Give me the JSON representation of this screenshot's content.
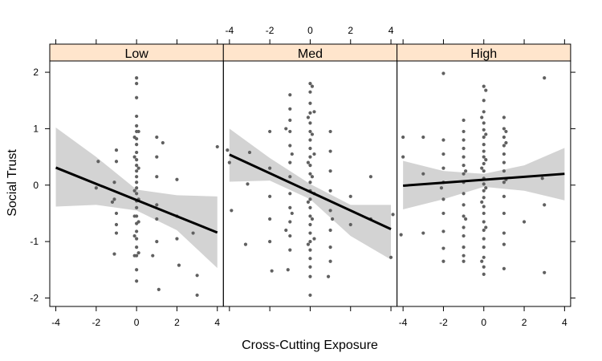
{
  "chart_data": {
    "type": "scatter",
    "xlabel": "Cross-Cutting Exposure",
    "ylabel": "Social Trust",
    "xlim": [
      -4.3,
      4.3
    ],
    "ylim": [
      -2.15,
      2.2
    ],
    "x_ticks": [
      -4,
      -2,
      0,
      2,
      4
    ],
    "y_ticks": [
      -2,
      -1,
      0,
      1,
      2
    ],
    "x_tick_labels": [
      "-4",
      "-2",
      "0",
      "2",
      "4"
    ],
    "y_tick_labels": [
      "-2",
      "-1",
      "0",
      "1",
      "2"
    ],
    "strip_color": "#ffe5cc",
    "point_color": "#606060",
    "line_color": "#000000",
    "band_color": "#d3d3d3",
    "panels": [
      {
        "label": "Low",
        "fit": {
          "x": [
            -4,
            4
          ],
          "y": [
            0.31,
            -0.84
          ]
        },
        "band": {
          "x": [
            -4,
            -2,
            0,
            2,
            4
          ],
          "upper": [
            1.02,
            0.5,
            -0.08,
            -0.18,
            -0.2
          ],
          "lower": [
            -0.38,
            -0.35,
            -0.45,
            -0.8,
            -1.47
          ]
        },
        "points": [
          [
            0,
            1.9
          ],
          [
            0,
            1.8
          ],
          [
            0,
            1.55
          ],
          [
            0,
            1.22
          ],
          [
            0,
            1.05
          ],
          [
            0,
            0.95
          ],
          [
            0,
            0.82
          ],
          [
            0,
            0.72
          ],
          [
            0,
            0.58
          ],
          [
            0,
            0.45
          ],
          [
            0,
            0.35
          ],
          [
            0,
            0.25
          ],
          [
            0,
            0.15
          ],
          [
            0,
            0.05
          ],
          [
            0,
            -0.05
          ],
          [
            0,
            -0.15
          ],
          [
            0,
            -0.28
          ],
          [
            0,
            -0.4
          ],
          [
            0,
            -0.55
          ],
          [
            0,
            -0.68
          ],
          [
            0,
            -0.82
          ],
          [
            0,
            -0.95
          ],
          [
            0,
            -1.1
          ],
          [
            0,
            -1.25
          ],
          [
            0,
            -1.5
          ],
          [
            0,
            -1.7
          ],
          [
            -0.1,
            0.85
          ],
          [
            -0.1,
            0.5
          ],
          [
            -0.1,
            -0.1
          ],
          [
            -0.1,
            -0.55
          ],
          [
            -0.1,
            -0.9
          ],
          [
            -0.1,
            -1.25
          ],
          [
            0.1,
            0.95
          ],
          [
            0.1,
            0.3
          ],
          [
            0.1,
            -0.25
          ],
          [
            0.1,
            -0.65
          ],
          [
            0.1,
            -1.2
          ],
          [
            -1,
            0.62
          ],
          [
            -1,
            0.42
          ],
          [
            -1.1,
            0.05
          ],
          [
            -1.1,
            -0.25
          ],
          [
            -1.2,
            -0.3
          ],
          [
            -1,
            -0.5
          ],
          [
            -1,
            -0.7
          ],
          [
            -1,
            -0.85
          ],
          [
            -1.1,
            -1.22
          ],
          [
            -1.9,
            0.42
          ],
          [
            -2,
            -0.05
          ],
          [
            1,
            0.85
          ],
          [
            1,
            0.5
          ],
          [
            1,
            0.15
          ],
          [
            1,
            -0.35
          ],
          [
            1,
            -0.6
          ],
          [
            1,
            -1.0
          ],
          [
            0.8,
            -1.25
          ],
          [
            1.1,
            -1.85
          ],
          [
            1.3,
            0.75
          ],
          [
            2,
            0.1
          ],
          [
            2,
            -0.55
          ],
          [
            2,
            -0.95
          ],
          [
            2.1,
            -1.42
          ],
          [
            3,
            -1.6
          ],
          [
            3,
            -1.95
          ],
          [
            2.8,
            -0.85
          ],
          [
            4,
            0.68
          ]
        ]
      },
      {
        "label": "Med",
        "fit": {
          "x": [
            -4,
            4
          ],
          "y": [
            0.54,
            -0.78
          ]
        },
        "band": {
          "x": [
            -4,
            -2,
            0,
            2,
            4
          ],
          "upper": [
            1.0,
            0.48,
            0.02,
            -0.35,
            -0.35
          ],
          "lower": [
            0.06,
            0.08,
            -0.25,
            -0.9,
            -1.32
          ]
        },
        "points": [
          [
            0,
            1.8
          ],
          [
            0,
            1.65
          ],
          [
            0,
            1.45
          ],
          [
            0,
            1.28
          ],
          [
            0,
            1.1
          ],
          [
            0,
            0.95
          ],
          [
            0,
            0.8
          ],
          [
            0,
            0.65
          ],
          [
            0,
            0.5
          ],
          [
            0,
            0.35
          ],
          [
            0,
            0.2
          ],
          [
            0,
            0.05
          ],
          [
            0,
            -0.1
          ],
          [
            0,
            -0.25
          ],
          [
            0,
            -0.4
          ],
          [
            0,
            -0.55
          ],
          [
            0,
            -0.7
          ],
          [
            0,
            -0.85
          ],
          [
            0,
            -1.0
          ],
          [
            0,
            -1.15
          ],
          [
            0,
            -1.3
          ],
          [
            0,
            -1.45
          ],
          [
            0,
            -1.62
          ],
          [
            0,
            -1.95
          ],
          [
            0.1,
            1.75
          ],
          [
            0.1,
            0.9
          ],
          [
            0.1,
            0.15
          ],
          [
            0.1,
            -0.6
          ],
          [
            -0.1,
            1.2
          ],
          [
            -0.1,
            0.4
          ],
          [
            -0.1,
            -0.3
          ],
          [
            -0.1,
            -1.05
          ],
          [
            0.2,
            1.3
          ],
          [
            0.2,
            0.55
          ],
          [
            0.2,
            -0.15
          ],
          [
            0.2,
            -0.95
          ],
          [
            -1,
            1.6
          ],
          [
            -1,
            1.35
          ],
          [
            -1,
            1.15
          ],
          [
            -1,
            0.95
          ],
          [
            -1,
            0.7
          ],
          [
            -1,
            0.4
          ],
          [
            -1,
            0.15
          ],
          [
            -1,
            -0.15
          ],
          [
            -1,
            -0.4
          ],
          [
            -1,
            -0.65
          ],
          [
            -1,
            -0.9
          ],
          [
            -1,
            -1.15
          ],
          [
            -1.1,
            -1.5
          ],
          [
            -0.9,
            0.55
          ],
          [
            -0.9,
            -0.5
          ],
          [
            -1.2,
            1.0
          ],
          [
            -1.2,
            -0.8
          ],
          [
            -2,
            0.95
          ],
          [
            -2,
            0.3
          ],
          [
            -2,
            -0.2
          ],
          [
            -2,
            -0.6
          ],
          [
            -2,
            -1.0
          ],
          [
            -1.9,
            -1.52
          ],
          [
            -3,
            0.58
          ],
          [
            -3.1,
            0.02
          ],
          [
            -3.2,
            -1.05
          ],
          [
            -4,
            0.4
          ],
          [
            -4.1,
            0.62
          ],
          [
            -3.9,
            -0.45
          ],
          [
            1,
            0.95
          ],
          [
            1,
            0.6
          ],
          [
            1,
            0.25
          ],
          [
            1,
            -0.1
          ],
          [
            1,
            -0.45
          ],
          [
            1,
            -0.8
          ],
          [
            1,
            -1.1
          ],
          [
            1,
            -1.35
          ],
          [
            0.9,
            -1.62
          ],
          [
            1.1,
            -0.6
          ],
          [
            2,
            -0.2
          ],
          [
            2,
            -0.7
          ],
          [
            3,
            0.15
          ],
          [
            3,
            -0.6
          ],
          [
            4,
            -1.28
          ],
          [
            4.1,
            -0.52
          ]
        ]
      },
      {
        "label": "High",
        "fit": {
          "x": [
            -4,
            4
          ],
          "y": [
            -0.01,
            0.2
          ]
        },
        "band": {
          "x": [
            -4,
            -2,
            0,
            2,
            4
          ],
          "upper": [
            0.43,
            0.25,
            0.2,
            0.35,
            0.66
          ],
          "lower": [
            -0.43,
            -0.25,
            -0.03,
            -0.1,
            -0.27
          ]
        },
        "points": [
          [
            0,
            1.75
          ],
          [
            0,
            1.5
          ],
          [
            0,
            1.3
          ],
          [
            0,
            1.1
          ],
          [
            0,
            0.98
          ],
          [
            0,
            0.85
          ],
          [
            0,
            0.72
          ],
          [
            0,
            0.6
          ],
          [
            0,
            0.5
          ],
          [
            0,
            0.38
          ],
          [
            0,
            0.25
          ],
          [
            0,
            0.12
          ],
          [
            0,
            0.02
          ],
          [
            0,
            -0.1
          ],
          [
            0,
            -0.22
          ],
          [
            0,
            -0.38
          ],
          [
            0,
            -0.5
          ],
          [
            0,
            -0.65
          ],
          [
            0,
            -0.8
          ],
          [
            0,
            -0.95
          ],
          [
            0,
            -1.1
          ],
          [
            0,
            -1.28
          ],
          [
            0,
            -1.45
          ],
          [
            0,
            -1.58
          ],
          [
            0.1,
            1.68
          ],
          [
            0.1,
            0.9
          ],
          [
            0.1,
            0.45
          ],
          [
            0.1,
            -0.05
          ],
          [
            0.1,
            -0.75
          ],
          [
            -0.1,
            1.2
          ],
          [
            -0.1,
            0.3
          ],
          [
            -0.1,
            -0.3
          ],
          [
            -0.1,
            -1.35
          ],
          [
            1,
            1.2
          ],
          [
            1,
            1.0
          ],
          [
            1,
            0.85
          ],
          [
            1,
            0.7
          ],
          [
            1,
            0.55
          ],
          [
            1,
            0.4
          ],
          [
            1,
            0.25
          ],
          [
            1,
            0.05
          ],
          [
            1,
            -0.2
          ],
          [
            1,
            -0.5
          ],
          [
            1,
            -0.85
          ],
          [
            1,
            -1.05
          ],
          [
            1,
            -1.48
          ],
          [
            1.1,
            0.95
          ],
          [
            1.1,
            0.75
          ],
          [
            1.1,
            0.1
          ],
          [
            -1,
            1.15
          ],
          [
            -1,
            0.95
          ],
          [
            -1,
            0.8
          ],
          [
            -1,
            0.65
          ],
          [
            -1,
            0.5
          ],
          [
            -1,
            0.35
          ],
          [
            -1,
            0.2
          ],
          [
            -1,
            0.05
          ],
          [
            -1,
            -0.15
          ],
          [
            -1,
            -0.35
          ],
          [
            -1,
            -0.55
          ],
          [
            -1,
            -0.75
          ],
          [
            -1,
            -0.9
          ],
          [
            -1,
            -1.1
          ],
          [
            -1,
            -1.25
          ],
          [
            -1,
            -1.35
          ],
          [
            -0.9,
            0.25
          ],
          [
            -0.9,
            -0.6
          ],
          [
            -2,
            1.98
          ],
          [
            -2,
            0.8
          ],
          [
            -2,
            0.55
          ],
          [
            -2,
            0.3
          ],
          [
            -2,
            0.05
          ],
          [
            -2,
            -0.25
          ],
          [
            -2,
            -0.5
          ],
          [
            -2,
            -0.82
          ],
          [
            -2,
            -1.12
          ],
          [
            -2,
            -1.35
          ],
          [
            -2.1,
            -0.05
          ],
          [
            -3,
            0.85
          ],
          [
            -3,
            0.2
          ],
          [
            -3,
            -0.85
          ],
          [
            -4,
            0.85
          ],
          [
            -4,
            0.5
          ],
          [
            -4.1,
            -0.88
          ],
          [
            2,
            -0.65
          ],
          [
            3,
            1.9
          ],
          [
            3,
            -0.35
          ],
          [
            3,
            -1.55
          ],
          [
            2.9,
            0.12
          ]
        ]
      }
    ]
  }
}
